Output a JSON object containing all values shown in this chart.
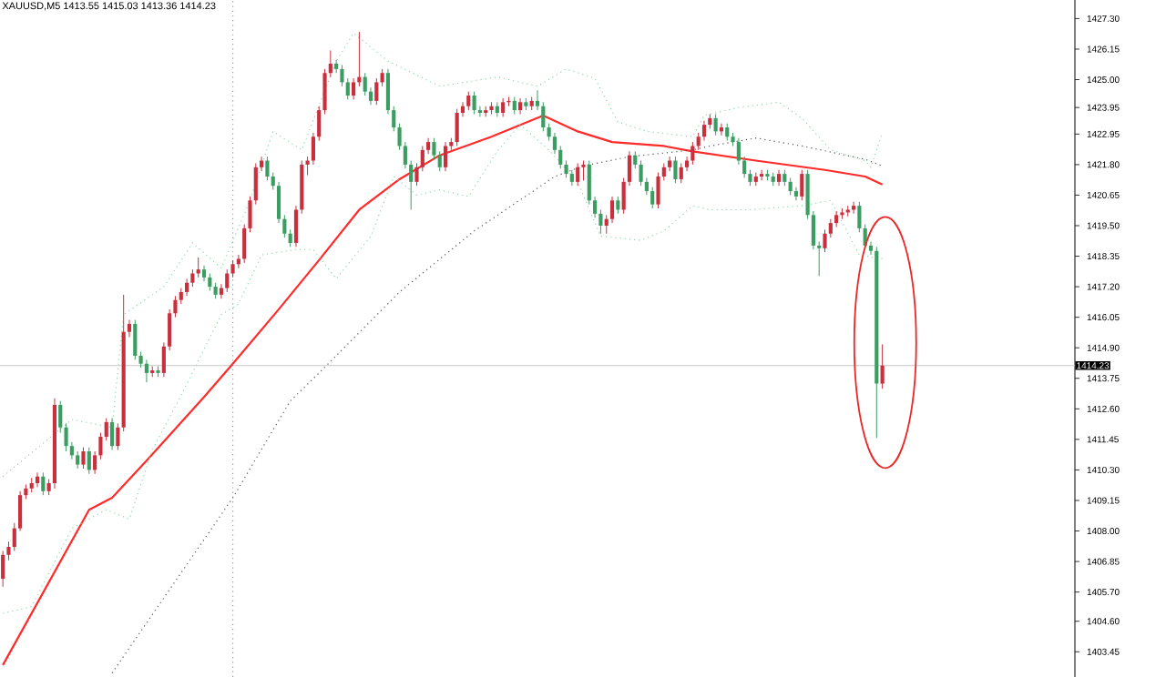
{
  "chart_data": {
    "type": "candlestick",
    "title": "XAUUSD,M5  1413.55 1415.03 1413.36 1414.23",
    "categories": [
      null,
      null,
      null,
      null,
      null,
      null,
      null,
      null,
      null,
      null,
      null,
      null,
      null,
      null,
      null,
      null,
      null,
      null,
      null,
      null,
      null,
      null,
      null,
      null,
      null,
      null,
      null,
      null,
      null,
      null,
      null,
      null,
      null,
      null,
      null,
      null,
      null,
      null,
      null,
      null,
      null,
      null,
      null,
      null,
      null,
      null,
      null,
      null,
      null,
      null,
      null,
      null,
      null,
      null,
      null,
      null,
      null,
      null,
      null,
      null,
      null,
      null,
      null,
      null,
      null,
      null,
      null,
      null,
      null,
      null,
      null,
      null,
      null,
      null,
      null,
      null,
      null,
      null,
      null,
      null,
      null,
      null,
      null,
      null,
      null,
      null,
      null,
      null,
      null,
      null,
      null,
      null,
      null,
      null,
      null,
      null,
      null,
      null,
      null,
      null,
      null,
      null,
      null,
      null,
      null,
      null,
      null,
      null,
      null,
      null,
      null,
      null,
      null,
      null,
      null,
      null,
      null,
      null,
      null,
      null,
      null,
      null,
      null,
      null,
      null,
      null,
      null,
      null,
      null,
      null,
      null,
      null,
      null,
      null,
      null,
      null,
      null,
      null,
      null,
      null,
      null,
      null,
      null,
      null,
      null,
      null,
      null,
      null,
      null,
      null,
      null,
      null,
      null,
      null,
      null,
      null,
      null,
      null,
      null,
      null,
      null,
      null,
      null,
      null,
      null,
      null,
      null,
      null,
      null,
      null,
      null,
      null,
      null,
      null,
      null,
      null,
      null,
      null,
      null,
      null,
      null,
      null,
      null,
      null,
      null,
      null,
      null
    ],
    "tick_labels": "y",
    "ylim": [
      1402.5,
      1428.0
    ],
    "yticks": [
      {
        "value": 1427.3,
        "label": "1427.30"
      },
      {
        "value": 1426.15,
        "label": "1426.15"
      },
      {
        "value": 1425.0,
        "label": "1425.00"
      },
      {
        "value": 1423.95,
        "label": "1423.95"
      },
      {
        "value": 1422.95,
        "label": "1422.95"
      },
      {
        "value": 1421.8,
        "label": "1421.80"
      },
      {
        "value": 1420.65,
        "label": "1420.65"
      },
      {
        "value": 1419.5,
        "label": "1419.50"
      },
      {
        "value": 1418.35,
        "label": "1418.35"
      },
      {
        "value": 1417.2,
        "label": "1417.20"
      },
      {
        "value": 1416.05,
        "label": "1416.05"
      },
      {
        "value": 1414.9,
        "label": "1414.90"
      },
      {
        "value": 1413.75,
        "label": "1413.75"
      },
      {
        "value": 1412.6,
        "label": "1412.60"
      },
      {
        "value": 1411.45,
        "label": "1411.45"
      },
      {
        "value": 1410.3,
        "label": "1410.30"
      },
      {
        "value": 1409.15,
        "label": "1409.15"
      },
      {
        "value": 1408.0,
        "label": "1408.00"
      },
      {
        "value": 1406.85,
        "label": "1406.85"
      },
      {
        "value": 1405.7,
        "label": "1405.70"
      },
      {
        "value": 1404.6,
        "label": "1404.60"
      },
      {
        "value": 1403.45,
        "label": "1403.45"
      }
    ],
    "ref_lines": [
      {
        "axis": "y",
        "value": 1414.23,
        "label": "1414.23",
        "color": "#c8c8c8"
      }
    ],
    "series": [
      {
        "ohlc": [
          [
            1406.2,
            1407.25,
            1405.9,
            1407.1
          ],
          [
            1407.1,
            1407.6,
            1406.9,
            1407.4
          ],
          [
            1407.4,
            1408.3,
            1407.25,
            1408.1
          ],
          [
            1408.1,
            1409.5,
            1408.0,
            1409.35
          ],
          [
            1409.35,
            1409.75,
            1409.2,
            1409.6
          ],
          [
            1409.6,
            1410.0,
            1409.45,
            1409.8
          ],
          [
            1409.8,
            1410.2,
            1409.65,
            1410.05
          ],
          [
            1410.05,
            1410.2,
            1409.35,
            1409.5
          ],
          [
            1409.5,
            1409.95,
            1409.35,
            1409.8
          ],
          [
            1409.8,
            1413.0,
            1409.6,
            1412.75
          ],
          [
            1412.75,
            1412.9,
            1411.7,
            1411.9
          ],
          [
            1411.9,
            1412.05,
            1411.0,
            1411.2
          ],
          [
            1411.2,
            1411.35,
            1410.7,
            1410.85
          ],
          [
            1410.85,
            1411.0,
            1410.35,
            1410.5
          ],
          [
            1410.5,
            1411.15,
            1410.35,
            1411.0
          ],
          [
            1411.0,
            1411.15,
            1410.15,
            1410.3
          ],
          [
            1410.3,
            1411.0,
            1410.15,
            1410.85
          ],
          [
            1410.85,
            1411.7,
            1410.7,
            1411.55
          ],
          [
            1411.55,
            1412.25,
            1411.4,
            1412.1
          ],
          [
            1412.1,
            1412.25,
            1411.05,
            1411.2
          ],
          [
            1411.2,
            1412.05,
            1411.05,
            1411.9
          ],
          [
            1411.9,
            1416.9,
            1411.75,
            1415.5
          ],
          [
            1415.5,
            1415.95,
            1415.3,
            1415.8
          ],
          [
            1415.8,
            1415.95,
            1414.45,
            1414.6
          ],
          [
            1414.6,
            1414.75,
            1414.15,
            1414.3
          ],
          [
            1414.3,
            1414.45,
            1413.6,
            1413.95
          ],
          [
            1413.95,
            1414.2,
            1413.8,
            1414.05
          ],
          [
            1414.05,
            1414.2,
            1413.8,
            1413.95
          ],
          [
            1413.95,
            1415.1,
            1413.8,
            1414.95
          ],
          [
            1414.95,
            1416.35,
            1414.8,
            1416.2
          ],
          [
            1416.2,
            1416.85,
            1416.05,
            1416.7
          ],
          [
            1416.7,
            1417.15,
            1416.55,
            1417.0
          ],
          [
            1417.0,
            1417.5,
            1416.85,
            1417.35
          ],
          [
            1417.35,
            1417.85,
            1417.2,
            1417.7
          ],
          [
            1417.7,
            1418.3,
            1417.55,
            1417.85
          ],
          [
            1417.85,
            1418.0,
            1417.4,
            1417.55
          ],
          [
            1417.55,
            1417.7,
            1417.05,
            1417.2
          ],
          [
            1417.2,
            1417.35,
            1416.75,
            1416.9
          ],
          [
            1416.9,
            1417.3,
            1416.75,
            1417.15
          ],
          [
            1417.15,
            1417.85,
            1417.0,
            1417.7
          ],
          [
            1417.7,
            1418.2,
            1417.55,
            1418.05
          ],
          [
            1418.05,
            1418.4,
            1417.9,
            1418.25
          ],
          [
            1418.25,
            1419.55,
            1418.1,
            1419.4
          ],
          [
            1419.4,
            1420.6,
            1419.25,
            1420.45
          ],
          [
            1420.45,
            1421.85,
            1420.3,
            1421.7
          ],
          [
            1421.7,
            1422.1,
            1421.55,
            1421.95
          ],
          [
            1421.95,
            1422.1,
            1421.2,
            1421.35
          ],
          [
            1421.35,
            1421.5,
            1420.85,
            1421.0
          ],
          [
            1421.0,
            1421.15,
            1419.6,
            1419.75
          ],
          [
            1419.75,
            1419.9,
            1419.05,
            1419.2
          ],
          [
            1419.2,
            1419.35,
            1418.7,
            1418.85
          ],
          [
            1418.85,
            1420.25,
            1418.7,
            1420.1
          ],
          [
            1420.1,
            1421.95,
            1419.95,
            1421.8
          ],
          [
            1421.8,
            1422.1,
            1421.4,
            1421.95
          ],
          [
            1421.95,
            1423.0,
            1421.8,
            1422.85
          ],
          [
            1422.85,
            1424.0,
            1422.7,
            1423.85
          ],
          [
            1423.85,
            1425.4,
            1423.7,
            1425.25
          ],
          [
            1425.25,
            1426.1,
            1425.1,
            1425.6
          ],
          [
            1425.6,
            1425.75,
            1425.25,
            1425.4
          ],
          [
            1425.4,
            1425.55,
            1424.75,
            1424.9
          ],
          [
            1424.9,
            1425.05,
            1424.25,
            1424.4
          ],
          [
            1424.4,
            1425.05,
            1424.25,
            1424.9
          ],
          [
            1424.9,
            1426.8,
            1424.75,
            1425.1
          ],
          [
            1425.1,
            1425.25,
            1424.4,
            1424.55
          ],
          [
            1424.55,
            1424.7,
            1424.05,
            1424.2
          ],
          [
            1424.2,
            1425.05,
            1424.05,
            1424.9
          ],
          [
            1424.9,
            1425.4,
            1424.75,
            1425.25
          ],
          [
            1425.25,
            1425.4,
            1423.7,
            1423.85
          ],
          [
            1423.85,
            1424.0,
            1423.05,
            1423.2
          ],
          [
            1423.2,
            1423.35,
            1422.35,
            1422.5
          ],
          [
            1422.5,
            1422.65,
            1421.65,
            1421.8
          ],
          [
            1421.8,
            1421.95,
            1420.1,
            1421.15
          ],
          [
            1421.15,
            1421.85,
            1421.0,
            1421.7
          ],
          [
            1421.7,
            1422.5,
            1421.55,
            1422.35
          ],
          [
            1422.35,
            1422.8,
            1422.2,
            1422.65
          ],
          [
            1422.65,
            1422.8,
            1422.0,
            1422.15
          ],
          [
            1422.15,
            1422.3,
            1421.55,
            1421.7
          ],
          [
            1421.7,
            1422.65,
            1421.55,
            1422.5
          ],
          [
            1422.5,
            1422.8,
            1422.35,
            1422.65
          ],
          [
            1422.65,
            1423.9,
            1422.5,
            1423.75
          ],
          [
            1423.75,
            1424.15,
            1423.6,
            1424.0
          ],
          [
            1424.0,
            1424.55,
            1423.85,
            1424.4
          ],
          [
            1424.4,
            1424.55,
            1423.7,
            1423.85
          ],
          [
            1423.85,
            1424.0,
            1423.6,
            1423.75
          ],
          [
            1423.75,
            1424.0,
            1423.6,
            1423.85
          ],
          [
            1423.85,
            1424.15,
            1423.7,
            1424.0
          ],
          [
            1424.0,
            1424.15,
            1423.6,
            1423.75
          ],
          [
            1423.75,
            1424.3,
            1423.6,
            1424.15
          ],
          [
            1424.15,
            1424.35,
            1424.0,
            1424.2
          ],
          [
            1424.2,
            1424.35,
            1423.7,
            1423.85
          ],
          [
            1423.85,
            1424.3,
            1423.7,
            1424.15
          ],
          [
            1424.15,
            1424.3,
            1423.85,
            1424.0
          ],
          [
            1424.0,
            1424.35,
            1423.85,
            1424.2
          ],
          [
            1424.2,
            1424.6,
            1423.85,
            1424.0
          ],
          [
            1424.0,
            1424.15,
            1423.05,
            1423.2
          ],
          [
            1423.2,
            1423.35,
            1422.7,
            1422.85
          ],
          [
            1422.85,
            1423.0,
            1422.2,
            1422.35
          ],
          [
            1422.35,
            1422.5,
            1421.65,
            1421.8
          ],
          [
            1421.8,
            1421.95,
            1421.3,
            1421.45
          ],
          [
            1421.45,
            1421.6,
            1421.0,
            1421.15
          ],
          [
            1421.15,
            1421.85,
            1421.0,
            1421.7
          ],
          [
            1421.7,
            1421.95,
            1421.2,
            1421.8
          ],
          [
            1421.8,
            1421.95,
            1420.3,
            1420.45
          ],
          [
            1420.45,
            1420.6,
            1419.8,
            1419.95
          ],
          [
            1419.95,
            1420.1,
            1419.2,
            1419.5
          ],
          [
            1419.5,
            1419.9,
            1419.2,
            1419.75
          ],
          [
            1419.75,
            1420.6,
            1419.6,
            1420.45
          ],
          [
            1420.45,
            1420.6,
            1419.95,
            1420.1
          ],
          [
            1420.1,
            1421.3,
            1419.95,
            1421.15
          ],
          [
            1421.15,
            1422.3,
            1421.0,
            1422.15
          ],
          [
            1422.15,
            1422.3,
            1421.65,
            1421.8
          ],
          [
            1421.8,
            1421.95,
            1421.0,
            1421.15
          ],
          [
            1421.15,
            1421.3,
            1420.65,
            1420.8
          ],
          [
            1420.8,
            1420.95,
            1420.15,
            1420.3
          ],
          [
            1420.3,
            1421.5,
            1420.15,
            1421.35
          ],
          [
            1421.35,
            1421.85,
            1421.2,
            1421.7
          ],
          [
            1421.7,
            1422.1,
            1421.55,
            1421.95
          ],
          [
            1421.95,
            1422.1,
            1421.1,
            1421.25
          ],
          [
            1421.25,
            1421.85,
            1421.1,
            1421.7
          ],
          [
            1421.7,
            1422.1,
            1421.55,
            1421.95
          ],
          [
            1421.95,
            1422.65,
            1421.8,
            1422.5
          ],
          [
            1422.5,
            1423.0,
            1422.35,
            1422.85
          ],
          [
            1422.85,
            1423.45,
            1422.7,
            1423.3
          ],
          [
            1423.3,
            1423.7,
            1423.15,
            1423.55
          ],
          [
            1423.55,
            1423.7,
            1422.9,
            1423.05
          ],
          [
            1423.05,
            1423.35,
            1422.9,
            1423.2
          ],
          [
            1423.2,
            1423.35,
            1422.7,
            1422.85
          ],
          [
            1422.85,
            1423.0,
            1422.5,
            1422.65
          ],
          [
            1422.65,
            1422.8,
            1421.8,
            1421.95
          ],
          [
            1421.95,
            1422.1,
            1421.3,
            1421.45
          ],
          [
            1421.45,
            1421.6,
            1421.0,
            1421.15
          ],
          [
            1421.15,
            1421.5,
            1421.0,
            1421.35
          ],
          [
            1421.35,
            1421.6,
            1421.2,
            1421.45
          ],
          [
            1421.45,
            1421.6,
            1421.2,
            1421.35
          ],
          [
            1421.35,
            1421.5,
            1421.0,
            1421.15
          ],
          [
            1421.15,
            1421.6,
            1421.0,
            1421.45
          ],
          [
            1421.45,
            1421.6,
            1421.0,
            1421.15
          ],
          [
            1421.15,
            1421.3,
            1420.65,
            1420.8
          ],
          [
            1420.8,
            1420.95,
            1420.45,
            1420.6
          ],
          [
            1420.6,
            1421.6,
            1420.45,
            1421.45
          ],
          [
            1421.45,
            1421.6,
            1419.75,
            1419.9
          ],
          [
            1419.9,
            1420.05,
            1418.6,
            1418.75
          ],
          [
            1418.75,
            1418.9,
            1417.6,
            1418.65
          ],
          [
            1418.65,
            1419.35,
            1418.5,
            1419.2
          ],
          [
            1419.2,
            1419.75,
            1419.05,
            1419.6
          ],
          [
            1419.6,
            1420.05,
            1419.45,
            1419.9
          ],
          [
            1419.9,
            1420.15,
            1419.75,
            1420.0
          ],
          [
            1420.0,
            1420.25,
            1419.85,
            1420.1
          ],
          [
            1420.1,
            1420.4,
            1419.95,
            1420.25
          ],
          [
            1420.25,
            1420.4,
            1419.25,
            1419.4
          ],
          [
            1419.4,
            1419.55,
            1418.6,
            1418.75
          ],
          [
            1418.75,
            1418.9,
            1418.4,
            1418.55
          ],
          [
            1418.55,
            1418.7,
            1411.5,
            1413.55
          ],
          [
            1413.55,
            1415.03,
            1413.36,
            1414.23
          ],
          null,
          null,
          null,
          null,
          null,
          null,
          null,
          null,
          null,
          null,
          null,
          null,
          null,
          null,
          null,
          null,
          null,
          null,
          null,
          null,
          null,
          null,
          null,
          null,
          null,
          null,
          null,
          null,
          null,
          null,
          null,
          null,
          null
        ],
        "colors": [
          "#c9303e",
          "#c9303e",
          "#c9303e",
          "#c9303e",
          "#c9303e",
          "#c9303e",
          "#c9303e",
          "#3c9d62",
          "#c9303e",
          "#c9303e",
          "#3c9d62",
          "#3c9d62",
          "#3c9d62",
          "#3c9d62",
          "#c9303e",
          "#3c9d62",
          "#c9303e",
          "#c9303e",
          "#c9303e",
          "#3c9d62",
          "#c9303e",
          "#c9303e",
          "#c9303e",
          "#3c9d62",
          "#3c9d62",
          "#3c9d62",
          "#c9303e",
          "#3c9d62",
          "#c9303e",
          "#c9303e",
          "#c9303e",
          "#c9303e",
          "#c9303e",
          "#c9303e",
          "#c9303e",
          "#3c9d62",
          "#3c9d62",
          "#3c9d62",
          "#c9303e",
          "#c9303e",
          "#c9303e",
          "#c9303e",
          "#c9303e",
          "#c9303e",
          "#c9303e",
          "#c9303e",
          "#3c9d62",
          "#3c9d62",
          "#3c9d62",
          "#3c9d62",
          "#3c9d62",
          "#c9303e",
          "#c9303e",
          "#c9303e",
          "#c9303e",
          "#c9303e",
          "#c9303e",
          "#c9303e",
          "#3c9d62",
          "#3c9d62",
          "#3c9d62",
          "#c9303e",
          "#c9303e",
          "#3c9d62",
          "#3c9d62",
          "#c9303e",
          "#c9303e",
          "#3c9d62",
          "#3c9d62",
          "#3c9d62",
          "#3c9d62",
          "#3c9d62",
          "#c9303e",
          "#c9303e",
          "#c9303e",
          "#3c9d62",
          "#3c9d62",
          "#c9303e",
          "#c9303e",
          "#c9303e",
          "#c9303e",
          "#c9303e",
          "#3c9d62",
          "#3c9d62",
          "#c9303e",
          "#c9303e",
          "#3c9d62",
          "#c9303e",
          "#c9303e",
          "#3c9d62",
          "#c9303e",
          "#3c9d62",
          "#c9303e",
          "#3c9d62",
          "#3c9d62",
          "#3c9d62",
          "#3c9d62",
          "#3c9d62",
          "#3c9d62",
          "#3c9d62",
          "#c9303e",
          "#c9303e",
          "#3c9d62",
          "#3c9d62",
          "#3c9d62",
          "#c9303e",
          "#c9303e",
          "#3c9d62",
          "#c9303e",
          "#c9303e",
          "#3c9d62",
          "#3c9d62",
          "#3c9d62",
          "#3c9d62",
          "#c9303e",
          "#c9303e",
          "#c9303e",
          "#3c9d62",
          "#c9303e",
          "#c9303e",
          "#c9303e",
          "#c9303e",
          "#c9303e",
          "#c9303e",
          "#3c9d62",
          "#c9303e",
          "#3c9d62",
          "#3c9d62",
          "#3c9d62",
          "#3c9d62",
          "#3c9d62",
          "#c9303e",
          "#c9303e",
          "#3c9d62",
          "#3c9d62",
          "#c9303e",
          "#3c9d62",
          "#3c9d62",
          "#3c9d62",
          "#c9303e",
          "#3c9d62",
          "#3c9d62",
          "#3c9d62",
          "#c9303e",
          "#c9303e",
          "#c9303e",
          "#c9303e",
          "#c9303e",
          "#c9303e",
          "#3c9d62",
          "#3c9d62",
          "#3c9d62",
          "#3c9d62",
          "#c9303e",
          null,
          null,
          null,
          null,
          null,
          null,
          null,
          null,
          null,
          null,
          null,
          null,
          null,
          null,
          null,
          null,
          null,
          null,
          null,
          null,
          null,
          null,
          null,
          null,
          null,
          null,
          null,
          null,
          null,
          null,
          null,
          null,
          null
        ]
      },
      {
        "type": "line",
        "color": "#ff2a2a",
        "line_style": "solid",
        "values": [
          1402.95,
          null,
          null,
          null,
          null,
          null,
          null,
          null,
          null,
          null,
          null,
          null,
          null,
          null,
          null,
          1408.8,
          null,
          null,
          null,
          1409.25,
          null,
          null,
          null,
          null,
          null,
          1410.65,
          null,
          null,
          null,
          null,
          null,
          null,
          null,
          null,
          null,
          1413.05,
          null,
          null,
          null,
          null,
          1414.3,
          null,
          null,
          null,
          null,
          null,
          null,
          null,
          1416.35,
          null,
          null,
          null,
          null,
          null,
          null,
          1418.2,
          null,
          null,
          null,
          null,
          null,
          null,
          1420.1,
          null,
          null,
          null,
          null,
          null,
          null,
          1421.25,
          null,
          null,
          null,
          null,
          null,
          null,
          1422.15,
          null,
          null,
          null,
          null,
          null,
          null,
          null,
          null,
          1422.85,
          null,
          null,
          null,
          null,
          null,
          null,
          null,
          null,
          1423.65,
          null,
          null,
          null,
          null,
          null,
          1423.05,
          null,
          null,
          null,
          null,
          null,
          1422.65,
          null,
          null,
          null,
          null,
          null,
          null,
          null,
          null,
          1422.5,
          null,
          null,
          null,
          null,
          1422.3,
          null,
          null,
          null,
          null,
          null,
          null,
          null,
          null,
          null,
          null,
          1421.95,
          null,
          null,
          null,
          null,
          null,
          null,
          null,
          null,
          null,
          null,
          null,
          1421.6,
          null,
          null,
          null,
          null,
          null,
          null,
          1421.35,
          null,
          null,
          1421.05,
          null,
          null,
          null,
          null,
          null,
          null,
          null,
          null,
          null,
          null,
          null,
          null,
          null,
          null,
          null,
          null,
          null,
          null,
          null,
          null,
          null,
          null,
          null,
          null,
          null,
          null,
          null,
          null,
          null,
          null,
          null,
          null,
          null
        ]
      },
      {
        "type": "line",
        "color": "#555555",
        "line_style": "dotted",
        "values": [
          null,
          null,
          null,
          null,
          null,
          null,
          null,
          null,
          null,
          null,
          null,
          null,
          null,
          null,
          null,
          null,
          null,
          null,
          null,
          1402.65,
          null,
          null,
          null,
          null,
          null,
          null,
          null,
          null,
          null,
          null,
          null,
          null,
          null,
          null,
          null,
          null,
          null,
          null,
          null,
          null,
          1409.25,
          null,
          null,
          null,
          null,
          null,
          null,
          null,
          null,
          null,
          1412.9,
          null,
          null,
          null,
          null,
          1413.95,
          null,
          null,
          null,
          null,
          null,
          null,
          null,
          null,
          null,
          null,
          null,
          null,
          null,
          1417.0,
          null,
          null,
          null,
          null,
          null,
          null,
          null,
          null,
          null,
          null,
          null,
          null,
          1419.3,
          null,
          null,
          null,
          null,
          null,
          null,
          null,
          null,
          null,
          null,
          null,
          null,
          null,
          1421.35,
          null,
          null,
          null,
          null,
          1421.75,
          null,
          null,
          null,
          null,
          null,
          null,
          null,
          1422.1,
          null,
          null,
          null,
          null,
          null,
          null,
          null,
          null,
          null,
          null,
          1422.35,
          null,
          null,
          1422.5,
          null,
          null,
          null,
          null,
          null,
          null,
          null,
          1422.8,
          null,
          null,
          null,
          null,
          null,
          null,
          null,
          1422.5,
          null,
          null,
          null,
          null,
          null,
          null,
          null,
          null,
          null,
          null,
          1422.0,
          null,
          null,
          1421.75,
          null,
          null,
          null,
          null,
          null,
          null,
          null,
          null,
          null,
          null,
          null,
          null,
          null,
          null,
          null,
          null,
          null,
          null,
          null,
          null,
          null,
          null,
          null,
          null,
          null,
          null,
          null,
          null,
          null,
          null,
          null,
          null,
          null
        ]
      },
      {
        "type": "line",
        "color": "#8fd6aa",
        "line_style": "dotted",
        "values": [
          1410.05,
          null,
          null,
          null,
          null,
          null,
          null,
          null,
          null,
          null,
          null,
          null,
          1412.2,
          null,
          null,
          null,
          null,
          null,
          null,
          1411.9,
          null,
          1416.15,
          null,
          null,
          null,
          null,
          null,
          null,
          1417.2,
          null,
          null,
          null,
          null,
          1418.85,
          null,
          null,
          null,
          null,
          1417.9,
          null,
          null,
          null,
          null,
          1420.45,
          null,
          null,
          null,
          1423.05,
          null,
          null,
          null,
          null,
          1422.35,
          null,
          null,
          null,
          null,
          null,
          1425.7,
          null,
          null,
          1426.75,
          null,
          null,
          null,
          null,
          null,
          1425.7,
          null,
          null,
          null,
          null,
          null,
          null,
          null,
          null,
          1424.75,
          null,
          null,
          null,
          null,
          null,
          null,
          null,
          null,
          null,
          1425.1,
          null,
          null,
          null,
          null,
          null,
          null,
          1424.75,
          null,
          null,
          null,
          null,
          1425.4,
          null,
          null,
          null,
          null,
          1425.05,
          null,
          null,
          null,
          1423.4,
          null,
          null,
          null,
          null,
          1423.05,
          null,
          null,
          null,
          null,
          null,
          null,
          null,
          1422.85,
          null,
          1423.65,
          null,
          null,
          null,
          null,
          null,
          1423.95,
          null,
          null,
          null,
          null,
          null,
          null,
          1424.15,
          null,
          null,
          null,
          1423.55,
          null,
          null,
          null,
          null,
          1422.35,
          null,
          null,
          null,
          null,
          null,
          1421.95,
          1421.7,
          null,
          1423.0,
          null,
          null,
          null,
          null,
          null,
          null,
          null,
          null,
          null,
          null,
          null,
          null,
          null,
          null,
          null,
          null,
          null,
          null,
          null,
          null,
          null,
          null,
          null,
          null,
          null,
          null,
          null,
          null,
          null,
          null,
          null,
          null,
          null
        ]
      },
      {
        "type": "line",
        "color": "#8fd6aa",
        "line_style": "dotted",
        "values": [
          1404.9,
          null,
          null,
          null,
          null,
          1405.15,
          null,
          null,
          null,
          null,
          null,
          null,
          1408.1,
          null,
          null,
          null,
          null,
          null,
          1408.8,
          null,
          null,
          null,
          1408.45,
          null,
          null,
          null,
          1411.05,
          null,
          null,
          null,
          null,
          1413.1,
          null,
          null,
          null,
          null,
          null,
          null,
          1416.15,
          null,
          null,
          1416.55,
          null,
          null,
          null,
          1418.4,
          null,
          null,
          null,
          null,
          null,
          1418.6,
          null,
          null,
          1418.6,
          null,
          null,
          null,
          1417.5,
          null,
          null,
          null,
          null,
          null,
          1419.1,
          null,
          null,
          null,
          1421.35,
          null,
          null,
          null,
          1420.65,
          null,
          null,
          null,
          1420.85,
          null,
          null,
          null,
          null,
          1420.6,
          null,
          null,
          null,
          null,
          1422.3,
          null,
          null,
          null,
          1423.3,
          null,
          null,
          null,
          null,
          1422.35,
          null,
          null,
          null,
          null,
          1421.15,
          null,
          null,
          null,
          1419.1,
          null,
          null,
          null,
          null,
          null,
          null,
          1418.95,
          null,
          null,
          null,
          1419.3,
          null,
          null,
          null,
          null,
          1420.25,
          null,
          null,
          1420.1,
          null,
          null,
          null,
          null,
          null,
          null,
          1420.1,
          null,
          null,
          null,
          null,
          null,
          null,
          null,
          null,
          1420.25,
          null,
          null,
          null,
          null,
          1420.45,
          null,
          null,
          null,
          null,
          1418.4,
          null,
          null,
          null,
          1418.25,
          null,
          null,
          null,
          null,
          null,
          null,
          null,
          null,
          null,
          null,
          null,
          null,
          null,
          null,
          null,
          null,
          null,
          null,
          null,
          null,
          null,
          null,
          null,
          null,
          null,
          null,
          null,
          null,
          null,
          null,
          null,
          null,
          null
        ]
      }
    ]
  }
}
